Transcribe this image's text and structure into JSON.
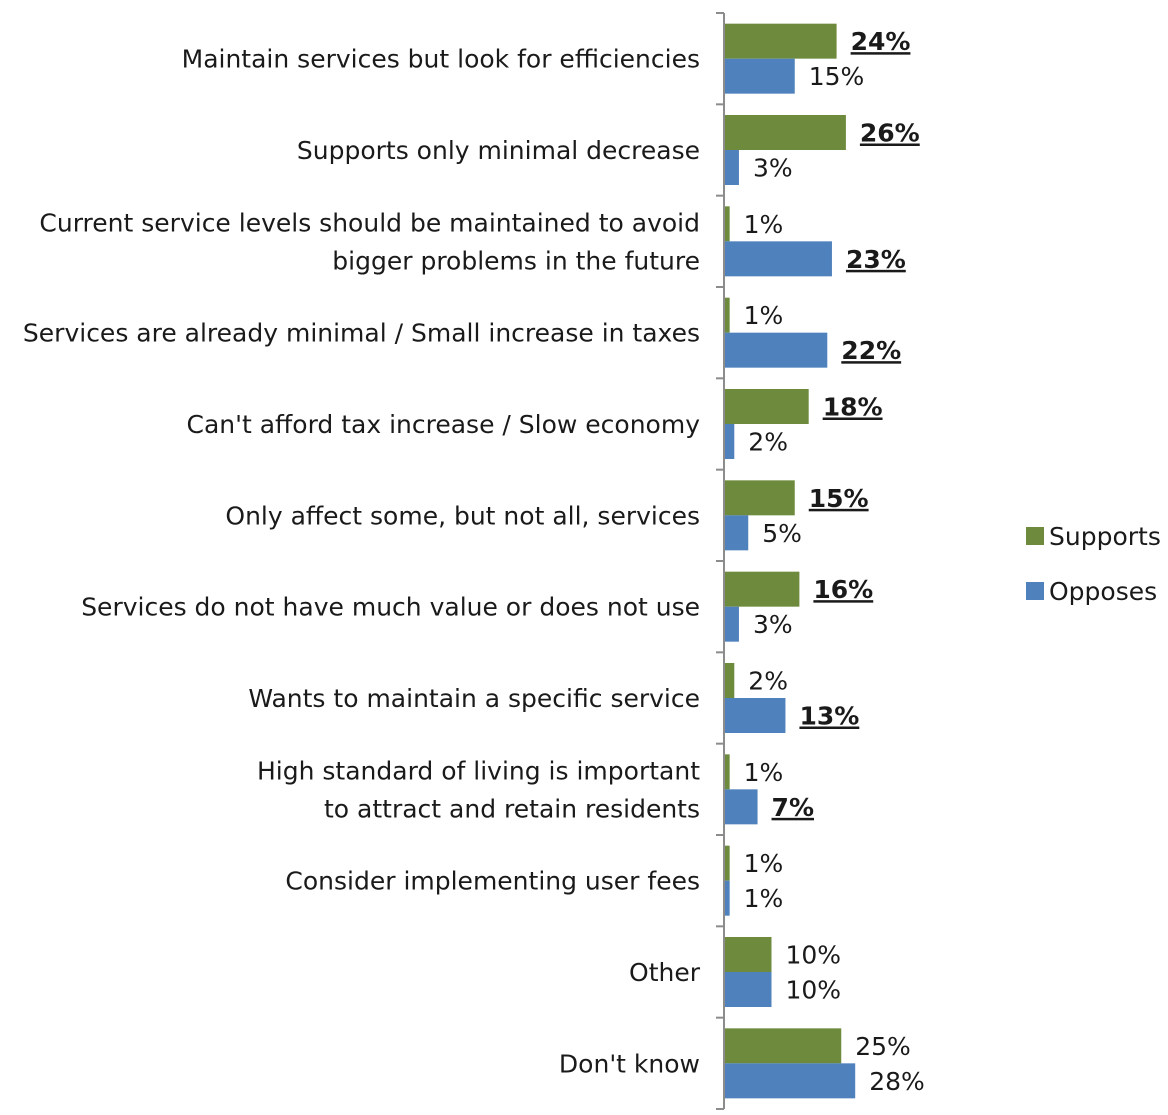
{
  "chart_data": {
    "type": "bar",
    "orientation": "horizontal",
    "categories": [
      [
        "Maintain services but look for efficiencies"
      ],
      [
        "Supports only minimal decrease"
      ],
      [
        "Current service levels should be maintained to avoid",
        "bigger problems in the future"
      ],
      [
        "Services are already minimal / Small increase in taxes"
      ],
      [
        "Can't afford tax increase / Slow economy"
      ],
      [
        "Only affect some, but not all, services"
      ],
      [
        "Services do not have much value or does not use"
      ],
      [
        "Wants to maintain a specific service"
      ],
      [
        "High standard of living is important",
        "to attract and retain residents"
      ],
      [
        "Consider implementing user fees"
      ],
      [
        "Other"
      ],
      [
        "Don't know"
      ]
    ],
    "series": [
      {
        "name": "Supports",
        "color": "#6e8b3d",
        "values": [
          24,
          26,
          1,
          1,
          18,
          15,
          16,
          2,
          1,
          1,
          10,
          25
        ],
        "labels": [
          "24%",
          "26%",
          "1%",
          "1%",
          "18%",
          "15%",
          "16%",
          "2%",
          "1%",
          "1%",
          "10%",
          "25%"
        ],
        "emphasized": [
          true,
          true,
          false,
          false,
          true,
          true,
          true,
          false,
          false,
          false,
          false,
          false
        ]
      },
      {
        "name": "Opposes",
        "color": "#4f81bd",
        "values": [
          15,
          3,
          23,
          22,
          2,
          5,
          3,
          13,
          7,
          1,
          10,
          28
        ],
        "labels": [
          "15%",
          "3%",
          "23%",
          "22%",
          "2%",
          "5%",
          "3%",
          "13%",
          "7%",
          "1%",
          "10%",
          "28%"
        ],
        "emphasized": [
          false,
          false,
          true,
          true,
          false,
          false,
          false,
          true,
          true,
          false,
          false,
          false
        ]
      }
    ],
    "xlim": [
      0,
      100
    ],
    "grid": false,
    "legend_position": "right"
  }
}
